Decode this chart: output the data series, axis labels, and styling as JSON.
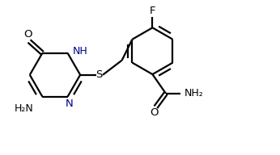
{
  "background": "#ffffff",
  "line_color": "#000000",
  "text_color": "#000000",
  "label_color_NH": "#00008b",
  "label_color_N": "#00008b",
  "line_width": 1.6,
  "figsize": [
    3.46,
    1.92
  ],
  "dpi": 100,
  "xlim": [
    0,
    10.5
  ],
  "ylim": [
    0,
    5.5
  ]
}
